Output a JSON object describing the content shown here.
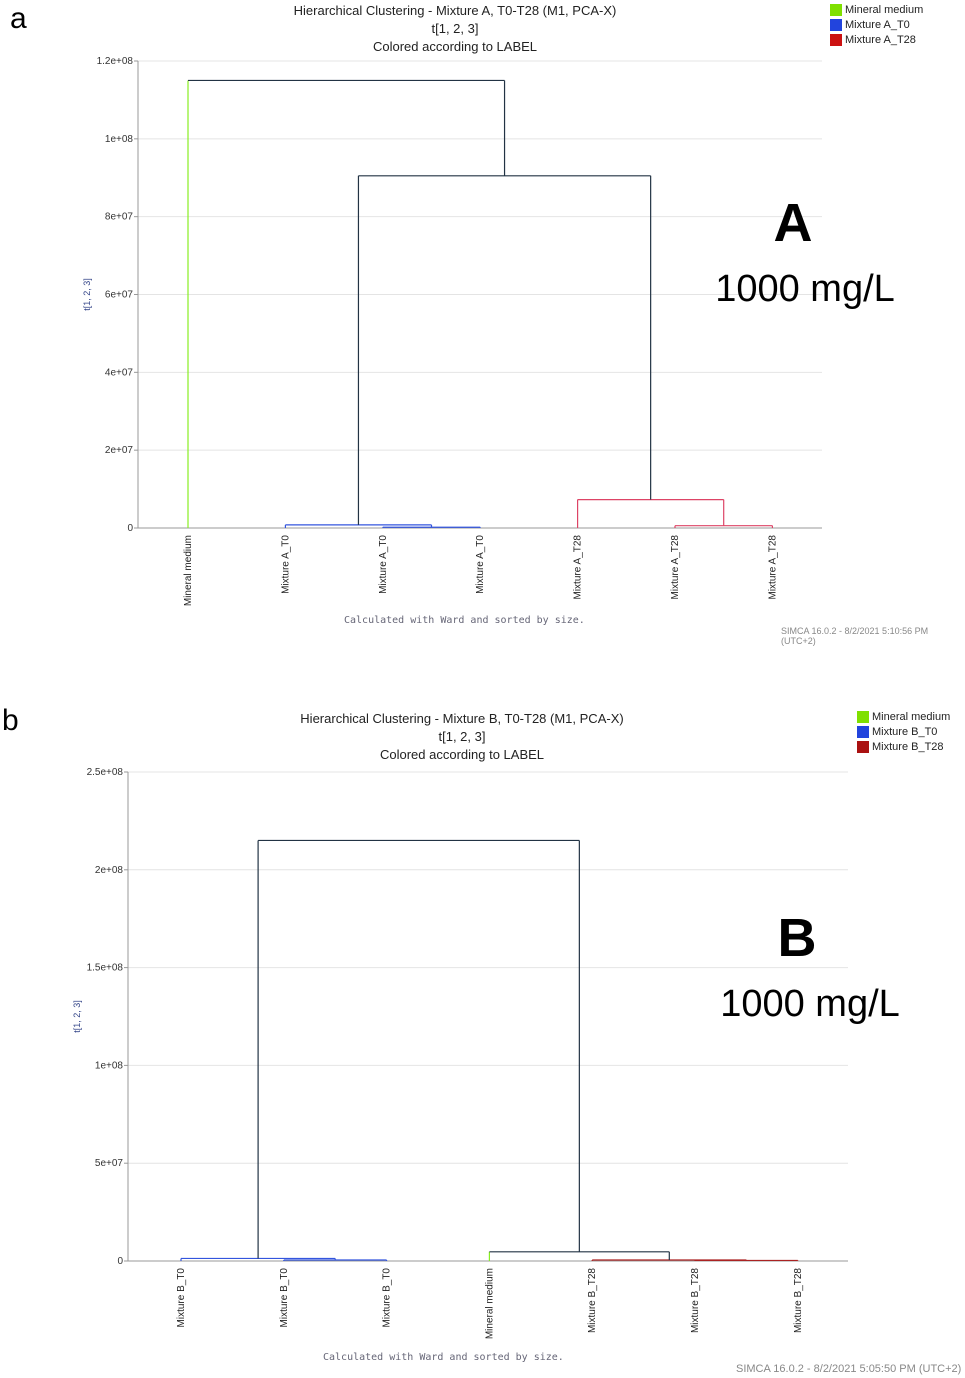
{
  "panels": [
    {
      "letter": "a",
      "title": "Hierarchical Clustering - Mixture A, T0-T28 (M1, PCA-X)",
      "subtitle": "t[1, 2, 3]",
      "coloring": "Colored according to LABEL",
      "overlay_label": "A",
      "overlay_conc": "1000 mg/L",
      "footer": "Calculated with Ward and sorted by size.",
      "stamp": "SIMCA 16.0.2 - 8/2/2021 5:10:56 PM (UTC+2)",
      "legend": [
        {
          "label": "Mineral medium",
          "color": "#7fe000"
        },
        {
          "label": "Mixture A_T0",
          "color": "#2244dd"
        },
        {
          "label": "Mixture A_T28",
          "color": "#cc1111"
        }
      ]
    },
    {
      "letter": "b",
      "title": "Hierarchical Clustering - Mixture B, T0-T28 (M1, PCA-X)",
      "subtitle": "t[1, 2, 3]",
      "coloring": "Colored according to LABEL",
      "overlay_label": "B",
      "overlay_conc": "1000 mg/L",
      "footer": "Calculated with Ward and sorted by size.",
      "stamp": "SIMCA 16.0.2 - 8/2/2021 5:05:50 PM (UTC+2)",
      "legend": [
        {
          "label": "Mineral medium",
          "color": "#7fe000"
        },
        {
          "label": "Mixture B_T0",
          "color": "#2244dd"
        },
        {
          "label": "Mixture B_T28",
          "color": "#aa1111"
        }
      ]
    }
  ],
  "chart_data": [
    {
      "type": "dendrogram",
      "title": "Hierarchical Clustering - Mixture A, T0-T28 (M1, PCA-X)",
      "ylabel": "t[1, 2, 3]",
      "ylim": [
        0,
        120000000
      ],
      "yticks": [
        0,
        20000000,
        40000000,
        60000000,
        80000000,
        100000000,
        120000000
      ],
      "ytick_labels": [
        "0",
        "2e+07",
        "4e+07",
        "6e+07",
        "8e+07",
        "1e+08",
        "1.2e+08"
      ],
      "grid": true,
      "leaves": [
        "Mineral medium",
        "Mixture A_T0",
        "Mixture A_T0",
        "Mixture A_T0",
        "Mixture A_T28",
        "Mixture A_T28",
        "Mixture A_T28"
      ],
      "merges": [
        {
          "left": 2,
          "right": 3,
          "height": 200000,
          "color": "#3355dd"
        },
        {
          "left": 1,
          "right": "m0",
          "height": 800000,
          "color": "#3355dd"
        },
        {
          "left": 5,
          "right": 6,
          "height": 600000,
          "color": "#dd4466"
        },
        {
          "left": 4,
          "right": "m2",
          "height": 7300000,
          "color": "#dd4466"
        },
        {
          "left": "m1",
          "right": "m3",
          "height": 90500000,
          "color": "#223344"
        },
        {
          "left": 0,
          "right": "m4",
          "height": 115000000,
          "color": "#223344"
        }
      ],
      "leaf_colors": [
        "#88ee22",
        "#3355dd",
        "#3355dd",
        "#3355dd",
        "#dd4466",
        "#dd4466",
        "#dd4466"
      ]
    },
    {
      "type": "dendrogram",
      "title": "Hierarchical Clustering - Mixture B, T0-T28 (M1, PCA-X)",
      "ylabel": "t[1, 2, 3]",
      "ylim": [
        0,
        250000000
      ],
      "yticks": [
        0,
        50000000,
        100000000,
        150000000,
        200000000,
        250000000
      ],
      "ytick_labels": [
        "0",
        "5e+07",
        "1e+08",
        "1.5e+08",
        "2e+08",
        "2.5e+08"
      ],
      "grid": true,
      "leaves": [
        "Mixture B_T0",
        "Mixture B_T0",
        "Mixture B_T0",
        "Mineral medium",
        "Mixture B_T28",
        "Mixture B_T28",
        "Mixture B_T28"
      ],
      "merges": [
        {
          "left": 1,
          "right": 2,
          "height": 500000,
          "color": "#3355dd"
        },
        {
          "left": 0,
          "right": "m0",
          "height": 1300000,
          "color": "#3355dd"
        },
        {
          "left": 5,
          "right": 6,
          "height": 300000,
          "color": "#aa2222"
        },
        {
          "left": 4,
          "right": "m2",
          "height": 500000,
          "color": "#aa2222"
        },
        {
          "left": 3,
          "right": "m3",
          "height": 4700000,
          "color": "#223344"
        },
        {
          "left": "m1",
          "right": "m4",
          "height": 215000000,
          "color": "#223344"
        }
      ],
      "leaf_colors": [
        "#3355dd",
        "#3355dd",
        "#3355dd",
        "#88ee22",
        "#aa2222",
        "#aa2222",
        "#aa2222"
      ]
    }
  ]
}
